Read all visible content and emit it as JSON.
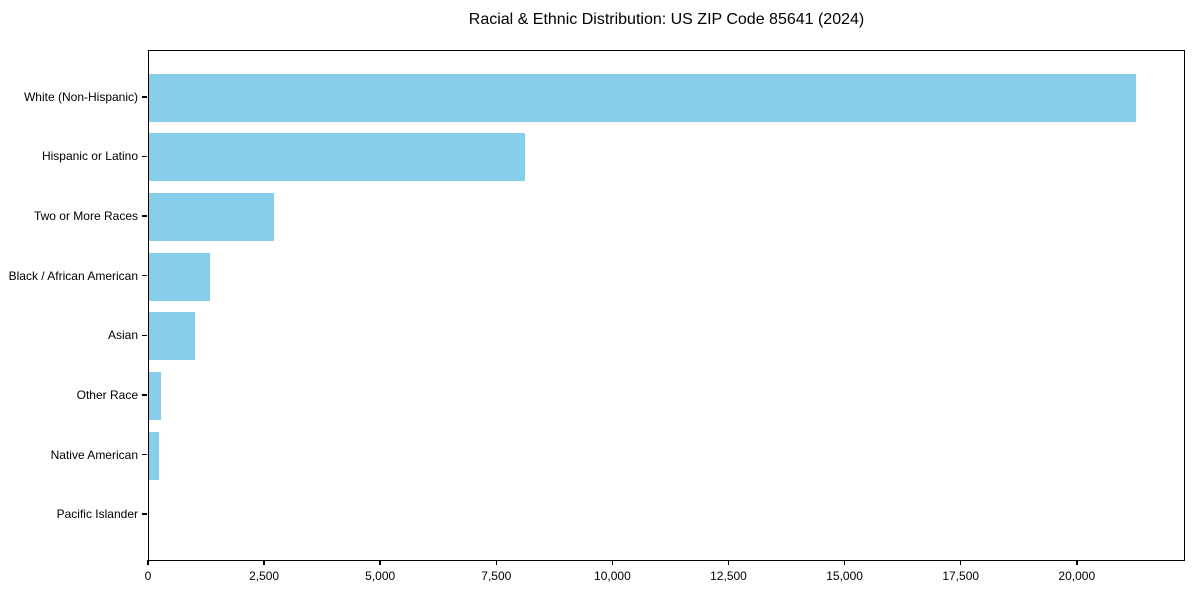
{
  "chart_data": {
    "type": "bar",
    "orientation": "horizontal",
    "title": "Racial & Ethnic Distribution: US ZIP Code 85641 (2024)",
    "categories": [
      "White (Non-Hispanic)",
      "Hispanic or Latino",
      "Two or More Races",
      "Black / African American",
      "Asian",
      "Other Race",
      "Native American",
      "Pacific Islander"
    ],
    "values": [
      21250,
      8100,
      2700,
      1310,
      990,
      250,
      210,
      0
    ],
    "xlabel": "",
    "ylabel": "",
    "xlim": [
      0,
      22330
    ],
    "xticks": [
      0,
      2500,
      5000,
      7500,
      10000,
      12500,
      15000,
      17500,
      20000
    ],
    "xtick_labels": [
      "0",
      "2,500",
      "5,000",
      "7,500",
      "10,000",
      "12,500",
      "15,000",
      "17,500",
      "20,000"
    ],
    "bar_color": "#87CEEB",
    "spine_color": "#000000",
    "grid": false,
    "legend_position": "none"
  }
}
